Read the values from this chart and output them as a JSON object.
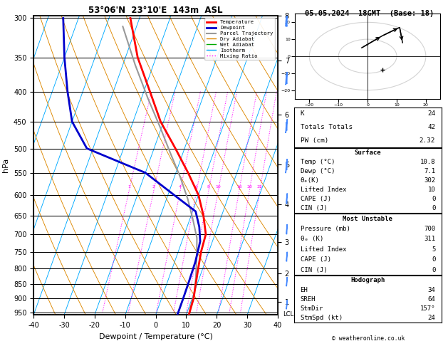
{
  "title_left": "53°06'N  23°10'E  143m  ASL",
  "title_right": "05.05.2024  18GMT  (Base: 18)",
  "xlabel": "Dewpoint / Temperature (°C)",
  "pressure_levels": [
    300,
    350,
    400,
    450,
    500,
    550,
    600,
    650,
    700,
    750,
    800,
    850,
    900,
    950
  ],
  "km_ticks": [
    1,
    2,
    3,
    4,
    5,
    6,
    7,
    8
  ],
  "km_pressures": [
    907,
    803,
    699,
    595,
    500,
    403,
    318,
    262
  ],
  "mixing_ratio_values": [
    1,
    2,
    4,
    6,
    8,
    10,
    16,
    20,
    25
  ],
  "lcl_pressure": 957,
  "temp_profile_pressure": [
    300,
    350,
    400,
    450,
    500,
    550,
    600,
    650,
    700,
    750,
    800,
    850,
    900,
    950,
    960
  ],
  "temp_profile_temp": [
    -43,
    -36,
    -28,
    -21,
    -13,
    -6,
    0,
    4,
    7,
    7.5,
    8.5,
    9.5,
    10.5,
    10.8,
    10.9
  ],
  "dewp_profile_pressure": [
    300,
    350,
    400,
    450,
    500,
    550,
    600,
    640,
    680,
    720,
    780,
    840,
    900,
    950,
    960
  ],
  "dewp_profile_temp": [
    -65,
    -60,
    -55,
    -50,
    -42,
    -20,
    -8,
    1,
    4,
    6,
    6.8,
    7.0,
    7.1,
    7.1,
    7.1
  ],
  "parcel_pressure": [
    960,
    920,
    870,
    820,
    760,
    710,
    660,
    610,
    560,
    510,
    460,
    410,
    360,
    310
  ],
  "parcel_temp": [
    10.8,
    10.4,
    9.9,
    8.5,
    6.5,
    4.5,
    1.0,
    -3.0,
    -8.0,
    -14.0,
    -20.5,
    -28.0,
    -36.0,
    -44.5
  ],
  "colors": {
    "temperature": "#ff0000",
    "dewpoint": "#0000cc",
    "parcel": "#999999",
    "dry_adiabat": "#dd8800",
    "wet_adiabat": "#00aa00",
    "isotherm": "#00aaff",
    "mixing_ratio": "#ff00ff",
    "wind_barbs": "#4488ff"
  },
  "stats": {
    "K": 24,
    "Totals_Totals": 42,
    "PW_cm": 2.32,
    "Surface_Temp": 10.8,
    "Surface_Dewp": 7.1,
    "Surface_ThetaE": 302,
    "Surface_LI": 10,
    "Surface_CAPE": 0,
    "Surface_CIN": 0,
    "MU_Pressure": 700,
    "MU_ThetaE": 311,
    "MU_LI": 5,
    "MU_CAPE": 0,
    "MU_CIN": 0,
    "EH": 34,
    "SREH": 64,
    "StmDir": 157,
    "StmSpd": 24
  }
}
